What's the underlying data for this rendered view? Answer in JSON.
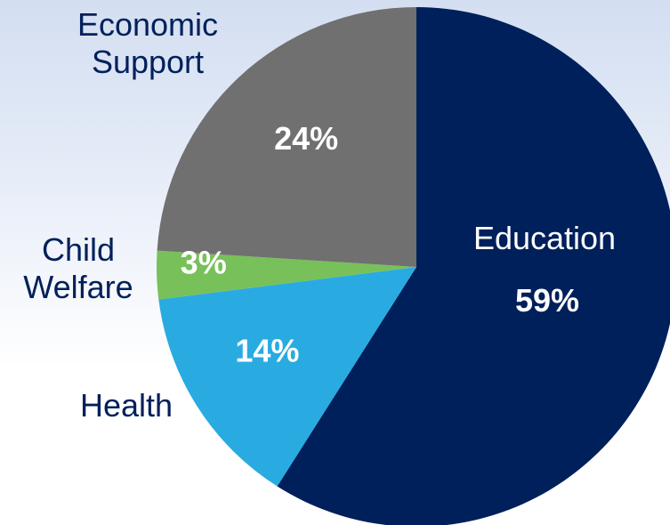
{
  "chart_data": {
    "type": "pie",
    "start_angle_deg": 0,
    "direction": "clockwise",
    "slices": [
      {
        "label_lines": [
          "Education"
        ],
        "value": 59,
        "value_label": "59%",
        "color": "#00205b",
        "label_color": "#ffffff",
        "label_inside": true
      },
      {
        "label_lines": [
          "Health"
        ],
        "value": 14,
        "value_label": "14%",
        "color": "#29abe2",
        "label_color": "#00205b",
        "label_inside": false
      },
      {
        "label_lines": [
          "Child",
          "Welfare"
        ],
        "value": 3,
        "value_label": "3%",
        "color": "#78c05a",
        "label_color": "#00205b",
        "label_inside": false
      },
      {
        "label_lines": [
          "Economic",
          "Support"
        ],
        "value": 24,
        "value_label": "24%",
        "color": "#707070",
        "label_color": "#00205b",
        "label_inside": false
      }
    ],
    "value_label_color": "#ffffff"
  }
}
